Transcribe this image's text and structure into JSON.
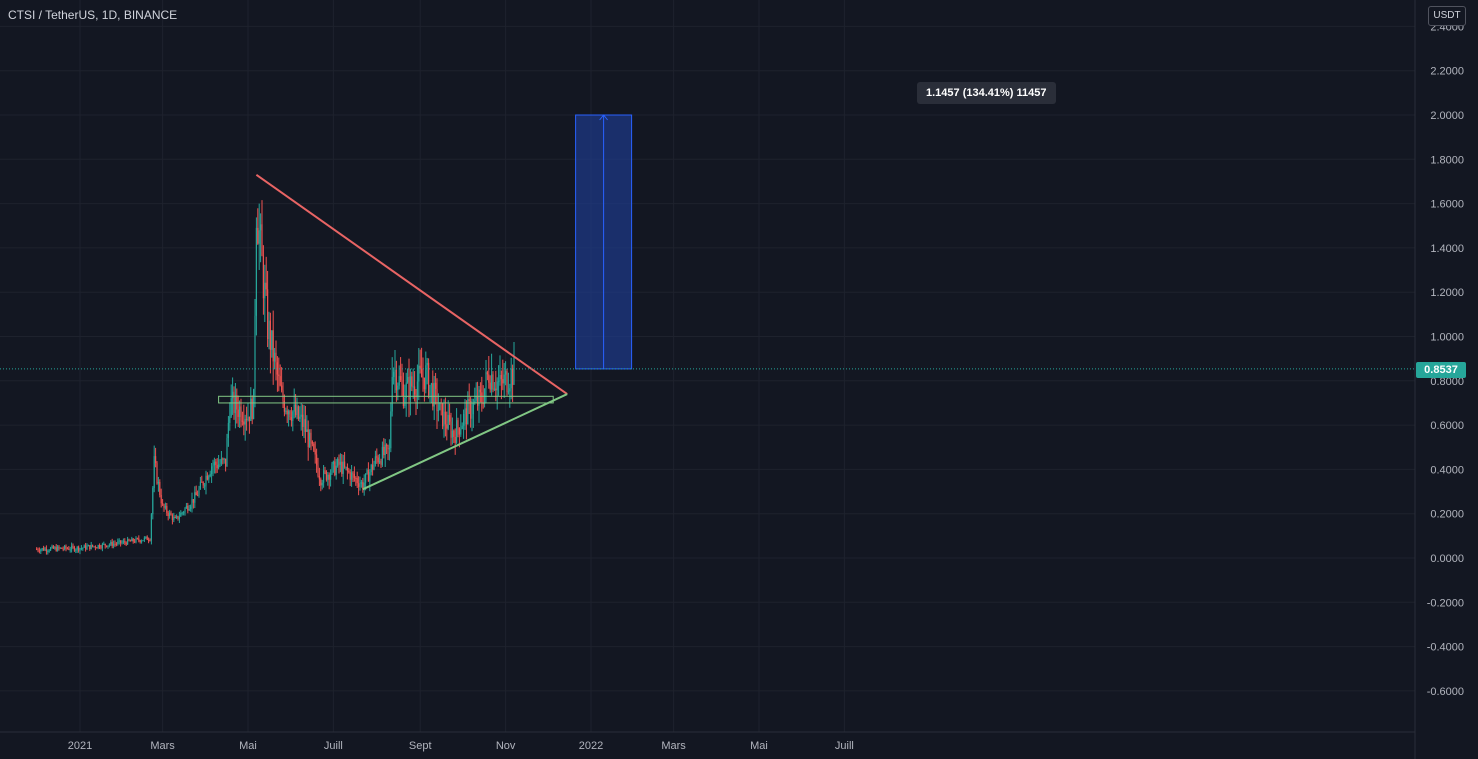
{
  "header": {
    "symbol": "CTSI / TetherUS, 1D, BINANCE"
  },
  "price_axis": {
    "currency": "USDT",
    "last_price": "0.8537"
  },
  "measure_label": "1.1457 (134.41%) 11457",
  "colors": {
    "background": "#131722",
    "grid": "#1e222d",
    "up": "#26a69a",
    "down": "#ef5350",
    "resistance": "#e86464",
    "support": "#81c784",
    "range_box": "#1e3a8a",
    "text": "#b2b5be"
  },
  "chart_data": {
    "type": "candlestick",
    "title": "CTSI / TetherUS, 1D, BINANCE",
    "y_ticks": [
      "2.4000",
      "2.2000",
      "2.0000",
      "1.8000",
      "1.6000",
      "1.4000",
      "1.2000",
      "1.0000",
      "0.8000",
      "0.6000",
      "0.4000",
      "0.2000",
      "0.0000",
      "-0.2000",
      "-0.4000",
      "-0.6000"
    ],
    "x_ticks": [
      "2021",
      "Mars",
      "Mai",
      "Juill",
      "Sept",
      "Nov",
      "2022",
      "Mars",
      "Mai",
      "Juill"
    ],
    "ylim": [
      -0.8,
      2.43
    ],
    "last_price": 0.8537,
    "price_path": [
      [
        "2020-12-01",
        0.04
      ],
      [
        "2021-01-01",
        0.045
      ],
      [
        "2021-02-01",
        0.07
      ],
      [
        "2021-02-20",
        0.09
      ],
      [
        "2021-02-23",
        0.43
      ],
      [
        "2021-03-01",
        0.23
      ],
      [
        "2021-03-10",
        0.17
      ],
      [
        "2021-03-25",
        0.28
      ],
      [
        "2021-04-05",
        0.42
      ],
      [
        "2021-04-15",
        0.43
      ],
      [
        "2021-04-18",
        0.7
      ],
      [
        "2021-05-01",
        0.65
      ],
      [
        "2021-05-05",
        0.7
      ],
      [
        "2021-05-07",
        1.6
      ],
      [
        "2021-05-15",
        1.05
      ],
      [
        "2021-05-25",
        0.72
      ],
      [
        "2021-06-10",
        0.6
      ],
      [
        "2021-06-22",
        0.36
      ],
      [
        "2021-07-05",
        0.42
      ],
      [
        "2021-07-22",
        0.33
      ],
      [
        "2021-08-01",
        0.45
      ],
      [
        "2021-08-10",
        0.48
      ],
      [
        "2021-08-12",
        0.88
      ],
      [
        "2021-08-20",
        0.75
      ],
      [
        "2021-09-05",
        0.83
      ],
      [
        "2021-09-15",
        0.66
      ],
      [
        "2021-09-25",
        0.56
      ],
      [
        "2021-10-05",
        0.66
      ],
      [
        "2021-10-15",
        0.72
      ],
      [
        "2021-10-20",
        0.84
      ],
      [
        "2021-10-28",
        0.78
      ],
      [
        "2021-11-08",
        0.85
      ]
    ],
    "annotations": {
      "resistance_line": [
        [
          "2021-05-07",
          1.73
        ],
        [
          "2021-12-15",
          0.74
        ]
      ],
      "support_line": [
        [
          "2021-07-22",
          0.31
        ],
        [
          "2021-12-15",
          0.74
        ]
      ],
      "horizontal_zone": {
        "from": "2021-04-10",
        "to": "2021-12-05",
        "low": 0.7,
        "high": 0.73
      },
      "price_range": {
        "from": "2021-12-21",
        "to": "2022-01-30",
        "low": 0.8537,
        "high": 2.0
      }
    }
  }
}
